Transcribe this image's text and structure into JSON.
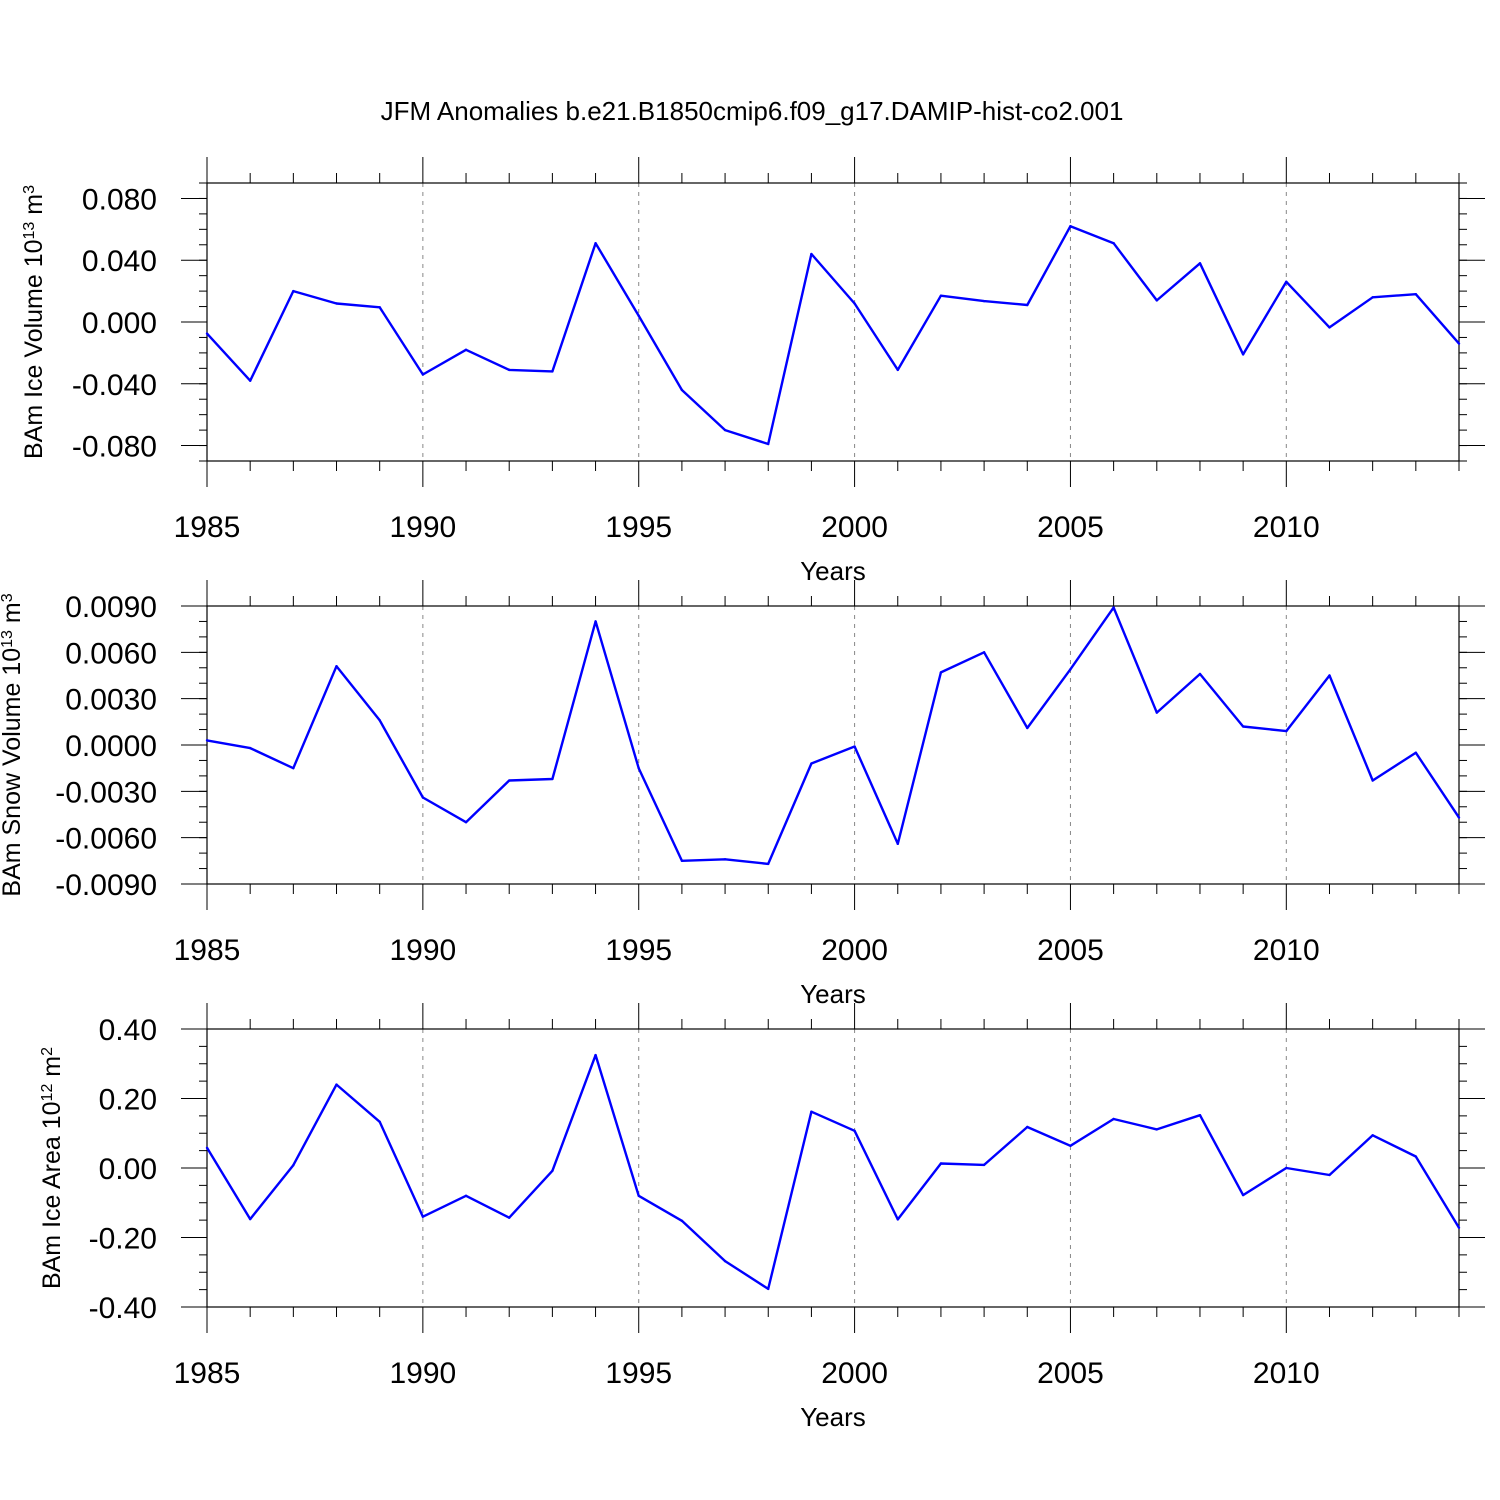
{
  "title": "JFM Anomalies b.e21.B1850cmip6.f09_g17.DAMIP-hist-co2.001",
  "chart_data": [
    {
      "type": "line",
      "ylabel_main": "BAm Ice Volume 10",
      "ylabel_exp": "13",
      "ylabel_unit": " m",
      "ylabel_unit_exp": "3",
      "xlabel": "Years",
      "xlim": [
        1985,
        2014
      ],
      "ylim": [
        -0.09,
        0.09
      ],
      "major_y": [
        0.08,
        0.04,
        0.0,
        -0.04,
        -0.08
      ],
      "ytick_labels": [
        "0.080",
        "0.040",
        "0.000",
        "-0.040",
        "-0.080"
      ],
      "minor_y_step": 0.01,
      "x": [
        1985,
        1986,
        1987,
        1988,
        1989,
        1990,
        1991,
        1992,
        1993,
        1994,
        1995,
        1996,
        1997,
        1998,
        1999,
        2000,
        2001,
        2002,
        2003,
        2004,
        2005,
        2006,
        2007,
        2008,
        2009,
        2010,
        2011,
        2012,
        2013,
        2014
      ],
      "values": [
        -0.0075,
        -0.038,
        0.02,
        0.012,
        0.0095,
        -0.034,
        -0.018,
        -0.031,
        -0.032,
        0.051,
        0.004,
        -0.044,
        -0.07,
        -0.079,
        0.044,
        0.012,
        -0.031,
        0.017,
        0.0135,
        0.011,
        0.062,
        0.051,
        0.014,
        0.038,
        -0.021,
        0.026,
        -0.0035,
        0.016,
        0.018,
        -0.014
      ]
    },
    {
      "type": "line",
      "ylabel_main": "BAm Snow Volume 10",
      "ylabel_exp": "13",
      "ylabel_unit": " m",
      "ylabel_unit_exp": "3",
      "xlabel": "Years",
      "xlim": [
        1985,
        2014
      ],
      "ylim": [
        -0.009,
        0.009
      ],
      "major_y": [
        0.009,
        0.006,
        0.003,
        0.0,
        -0.003,
        -0.006,
        -0.009
      ],
      "ytick_labels": [
        "0.0090",
        "0.0060",
        "0.0030",
        "0.0000",
        "-0.0030",
        "-0.0060",
        "-0.0090"
      ],
      "minor_y_step": 0.001,
      "x": [
        1985,
        1986,
        1987,
        1988,
        1989,
        1990,
        1991,
        1992,
        1993,
        1994,
        1995,
        1996,
        1997,
        1998,
        1999,
        2000,
        2001,
        2002,
        2003,
        2004,
        2005,
        2006,
        2007,
        2008,
        2009,
        2010,
        2011,
        2012,
        2013,
        2014
      ],
      "values": [
        0.0003,
        -0.0002,
        -0.0015,
        0.0051,
        0.0016,
        -0.0034,
        -0.005,
        -0.0023,
        -0.0022,
        0.008,
        -0.0015,
        -0.0075,
        -0.0074,
        -0.0077,
        -0.0012,
        -0.0001,
        -0.0064,
        0.0047,
        0.006,
        0.0011,
        0.0049,
        0.0089,
        0.0021,
        0.0046,
        0.0012,
        0.0009,
        0.0045,
        -0.0023,
        -0.0005,
        -0.0047
      ]
    },
    {
      "type": "line",
      "ylabel_main": "BAm Ice Area 10",
      "ylabel_exp": "12",
      "ylabel_unit": " m",
      "ylabel_unit_exp": "2",
      "xlabel": "Years",
      "xlim": [
        1985,
        2014
      ],
      "ylim": [
        -0.4,
        0.4
      ],
      "major_y": [
        0.4,
        0.2,
        0.0,
        -0.2,
        -0.4
      ],
      "ytick_labels": [
        "0.40",
        "0.20",
        "0.00",
        "-0.20",
        "-0.40"
      ],
      "minor_y_step": 0.05,
      "x": [
        1985,
        1986,
        1987,
        1988,
        1989,
        1990,
        1991,
        1992,
        1993,
        1994,
        1995,
        1996,
        1997,
        1998,
        1999,
        2000,
        2001,
        2002,
        2003,
        2004,
        2005,
        2006,
        2007,
        2008,
        2009,
        2010,
        2011,
        2012,
        2013,
        2014
      ],
      "values": [
        0.058,
        -0.147,
        0.008,
        0.24,
        0.133,
        -0.14,
        -0.08,
        -0.143,
        -0.008,
        0.325,
        -0.08,
        -0.152,
        -0.268,
        -0.348,
        0.162,
        0.107,
        -0.148,
        0.013,
        0.009,
        0.118,
        0.064,
        0.141,
        0.111,
        0.152,
        -0.078,
        0.0,
        -0.02,
        0.094,
        0.033,
        -0.172
      ]
    }
  ],
  "xtick_labels": [
    "1985",
    "1990",
    "1995",
    "2000",
    "2005",
    "2010"
  ],
  "colors": {
    "line": "#0000ff",
    "axis": "#000000",
    "grid": "#888888"
  }
}
